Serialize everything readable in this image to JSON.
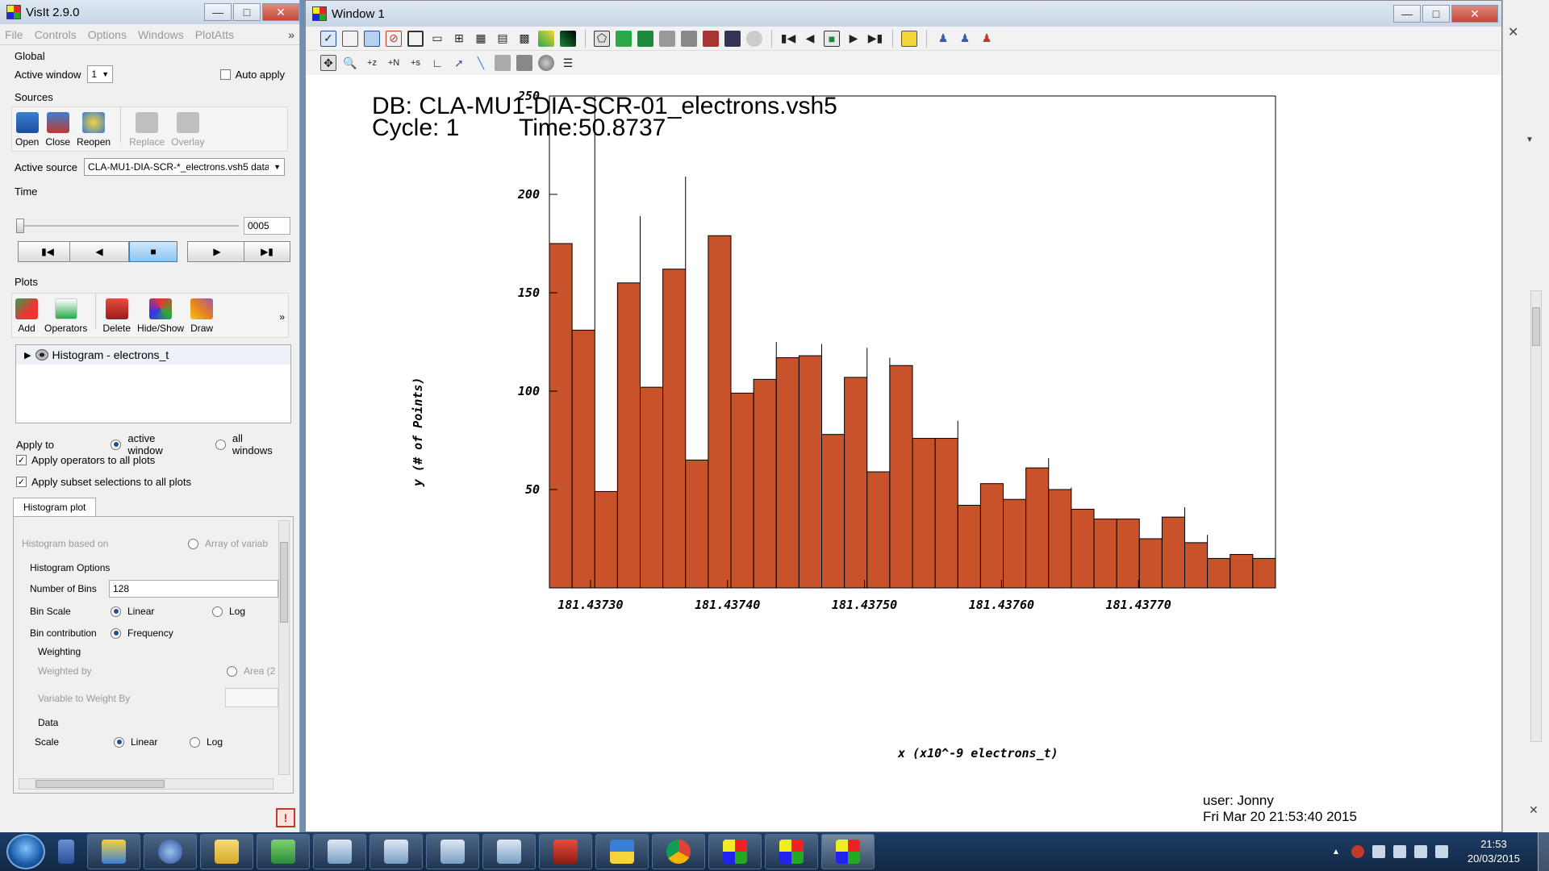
{
  "visit_window": {
    "title": "VisIt 2.9.0",
    "menu": [
      "File",
      "Controls",
      "Options",
      "Windows",
      "PlotAtts"
    ],
    "menu_more": "»",
    "global": {
      "label": "Global",
      "active_window_label": "Active window",
      "active_window_value": "1",
      "auto_apply_label": "Auto apply"
    },
    "sources": {
      "label": "Sources",
      "tools": [
        "Open",
        "Close",
        "Reopen",
        "Replace",
        "Overlay"
      ],
      "active_source_label": "Active source",
      "active_source_value": "CLA-MU1-DIA-SCR-*_electrons.vsh5 data"
    },
    "time": {
      "label": "Time",
      "value": "0005",
      "slider_fraction": 0
    },
    "plots": {
      "label": "Plots",
      "tools": [
        "Add",
        "Operators",
        "Delete",
        "Hide/Show",
        "Draw"
      ],
      "more": "»",
      "items": [
        "Histogram - electrons_t"
      ]
    },
    "apply_to": {
      "label": "Apply to",
      "options": [
        "active window",
        "all windows"
      ],
      "selected": "active window"
    },
    "checks": {
      "operators": "Apply operators to all plots",
      "subset": "Apply subset selections to all plots"
    },
    "histogram_tab": {
      "tab_label": "Histogram plot",
      "based_on_label": "Histogram based on",
      "based_on_option": "Array of variab",
      "options_label": "Histogram Options",
      "num_bins_label": "Number of Bins",
      "num_bins_value": "128",
      "bin_scale_label": "Bin Scale",
      "bin_scale_linear": "Linear",
      "bin_scale_log": "Log",
      "bin_contribution_label": "Bin contribution",
      "bin_contribution_value": "Frequency",
      "weighting_label": "Weighting",
      "weighted_by_label": "Weighted by",
      "weighted_by_option": "Area (2",
      "var_weight_label": "Variable to Weight By",
      "data_label": "Data",
      "scale_label": "Scale",
      "scale_linear": "Linear",
      "scale_log": "Log"
    }
  },
  "plot_window": {
    "title": "Window 1",
    "db_line": "DB: CLA-MU1-DIA-SCR-01_electrons.vsh5",
    "cycle_line": "Cycle: 1",
    "time_line": "Time:50.8737",
    "user_line": "user: Jonny",
    "date_line": "Fri Mar 20 21:53:40 2015"
  },
  "chart_data": {
    "type": "bar",
    "title": "",
    "xlabel": "x (x10^-9 electrons_t)",
    "ylabel": "y (# of Points)",
    "bar_color": "#c8522a",
    "xlim": [
      181.43727,
      181.4378
    ],
    "ylim": [
      0,
      250
    ],
    "x_ticks": [
      "181.43730",
      "181.43740",
      "181.43750",
      "181.43760",
      "181.43770"
    ],
    "x_tick_values": [
      181.4373,
      181.4374,
      181.4375,
      181.4376,
      181.4377
    ],
    "y_ticks": [
      "50",
      "100",
      "150",
      "200",
      "250"
    ],
    "y_tick_values": [
      50,
      100,
      150,
      200,
      250
    ],
    "values": [
      175,
      131,
      49,
      155,
      102,
      162,
      65,
      179,
      99,
      106,
      117,
      118,
      78,
      107,
      59,
      113,
      76,
      76,
      42,
      53,
      45,
      61,
      50,
      40,
      35,
      35,
      25,
      36,
      23,
      15,
      17,
      15
    ],
    "spikes": [
      0,
      258,
      0,
      189,
      0,
      209,
      0,
      0,
      0,
      125,
      0,
      124,
      0,
      122,
      117,
      0,
      0,
      85,
      0,
      0,
      0,
      66,
      51,
      0,
      0,
      0,
      0,
      41,
      27,
      0,
      0,
      41
    ],
    "grid": false
  },
  "taskbar": {
    "time": "21:53",
    "date": "20/03/2015"
  }
}
